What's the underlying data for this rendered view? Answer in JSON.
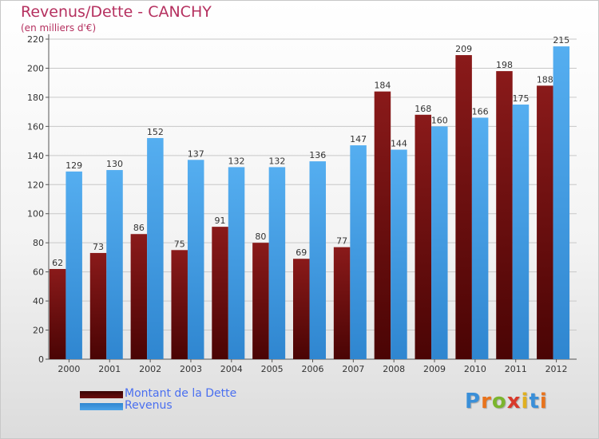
{
  "header": {
    "title": "Revenus/Dette - CANCHY",
    "subtitle": "(en milliers d'€)"
  },
  "chart_data": {
    "type": "bar",
    "categories": [
      "2000",
      "2001",
      "2002",
      "2003",
      "2004",
      "2005",
      "2006",
      "2007",
      "2008",
      "2009",
      "2010",
      "2011",
      "2012"
    ],
    "series": [
      {
        "name": "Montant de la Dette",
        "color": "#6b0c0c",
        "values": [
          62,
          73,
          86,
          75,
          91,
          80,
          69,
          77,
          184,
          168,
          209,
          198,
          188
        ]
      },
      {
        "name": "Revenus",
        "color": "#4ba3e8",
        "values": [
          129,
          130,
          152,
          137,
          132,
          132,
          136,
          147,
          144,
          160,
          166,
          175,
          215
        ]
      }
    ],
    "ylim": [
      0,
      220
    ],
    "yticks": [
      0,
      20,
      40,
      60,
      80,
      100,
      120,
      140,
      160,
      180,
      200,
      220
    ],
    "grid": true,
    "legend": "bottom-left"
  },
  "legend": {
    "debt_label": "Montant de la Dette",
    "revenue_label": "Revenus",
    "debt_color": "#6b0c0c",
    "revenue_color": "#4ba3e8"
  },
  "logo": {
    "letters": [
      "P",
      "r",
      "o",
      "x",
      "i",
      "t",
      "i"
    ],
    "colors": [
      "#3a8fd8",
      "#e8731c",
      "#7bb52e",
      "#d8392b",
      "#e0b020",
      "#3a8fd8",
      "#e8731c"
    ]
  }
}
